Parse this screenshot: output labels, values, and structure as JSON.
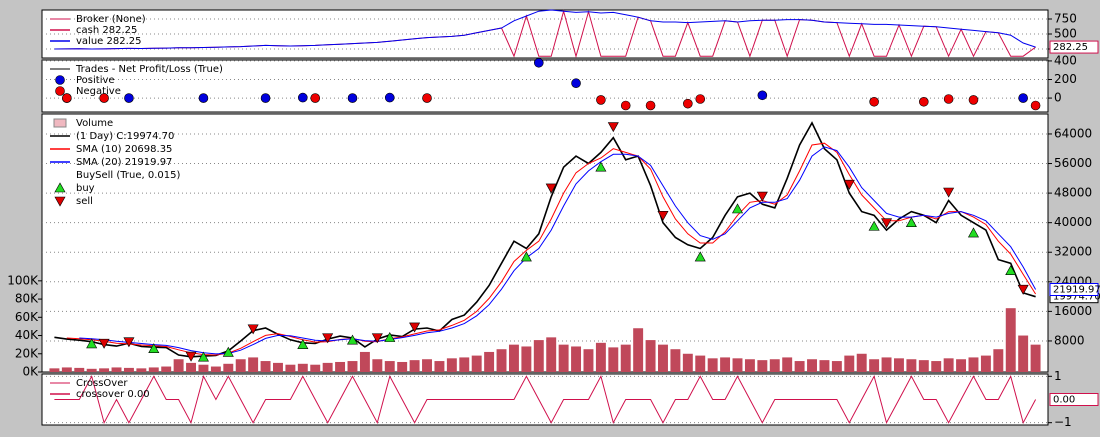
{
  "chart_data": [
    {
      "type": "line",
      "title": "Broker (None)",
      "ylim": [
        100,
        900
      ],
      "yticks": [
        250,
        500,
        750
      ],
      "xlim": [
        -1,
        80
      ],
      "grid": true,
      "x": [
        0,
        1,
        2,
        3,
        4,
        5,
        6,
        7,
        8,
        9,
        10,
        11,
        12,
        13,
        14,
        15,
        16,
        17,
        18,
        19,
        20,
        21,
        22,
        23,
        24,
        25,
        26,
        27,
        28,
        29,
        30,
        31,
        32,
        33,
        34,
        35,
        36,
        37,
        38,
        39,
        40,
        41,
        42,
        43,
        44,
        45,
        46,
        47,
        48,
        49,
        50,
        51,
        52,
        53,
        54,
        55,
        56,
        57,
        58,
        59,
        60,
        61,
        62,
        63,
        64,
        65,
        66,
        67,
        68,
        69,
        70,
        71,
        72,
        73,
        74,
        75,
        76,
        77,
        78,
        79
      ],
      "series": [
        {
          "name": "cash 282.25",
          "color": "#d0104c",
          "kind": "line",
          "last_label": "282.25",
          "values": [
            250,
            252,
            255,
            250,
            252,
            256,
            260,
            258,
            262,
            265,
            270,
            272,
            275,
            280,
            285,
            290,
            300,
            310,
            305,
            300,
            305,
            310,
            320,
            330,
            340,
            350,
            360,
            380,
            400,
            420,
            440,
            450,
            460,
            480,
            520,
            560,
            600,
            130,
            800,
            130,
            130,
            880,
            130,
            870,
            130,
            130,
            130,
            780,
            720,
            130,
            130,
            690,
            130,
            130,
            720,
            700,
            130,
            730,
            730,
            130,
            740,
            730,
            700,
            690,
            130,
            670,
            130,
            130,
            650,
            130,
            630,
            620,
            130,
            580,
            130,
            540,
            520,
            130,
            130,
            282.25
          ]
        },
        {
          "name": "value 282.25",
          "color": "#0000ee",
          "kind": "line",
          "values": [
            250,
            252,
            255,
            250,
            252,
            256,
            260,
            258,
            262,
            265,
            270,
            272,
            275,
            280,
            285,
            290,
            300,
            310,
            305,
            300,
            305,
            310,
            320,
            330,
            340,
            350,
            360,
            380,
            400,
            420,
            440,
            450,
            460,
            480,
            520,
            560,
            600,
            720,
            800,
            880,
            900,
            880,
            860,
            870,
            850,
            860,
            820,
            780,
            720,
            700,
            700,
            690,
            700,
            710,
            720,
            700,
            720,
            730,
            730,
            740,
            740,
            730,
            700,
            690,
            680,
            670,
            660,
            660,
            650,
            640,
            630,
            620,
            600,
            580,
            560,
            540,
            520,
            480,
            350,
            282.25
          ]
        }
      ]
    },
    {
      "type": "scatter",
      "title": "Trades - Net Profit/Loss (True)",
      "ylim": [
        -150,
        410
      ],
      "yticks": [
        0,
        200,
        400
      ],
      "xlim": [
        -1,
        80
      ],
      "grid": true,
      "series": [
        {
          "name": "Positive",
          "color": "#0000dd",
          "kind": "dot",
          "x": [
            1,
            6,
            12,
            17,
            20,
            24,
            27,
            39,
            42,
            57,
            78
          ],
          "values": [
            0,
            0,
            0,
            0,
            5,
            0,
            5,
            380,
            160,
            30,
            0
          ]
        },
        {
          "name": "Negative",
          "color": "#ee0000",
          "kind": "dot",
          "x": [
            1,
            4,
            21,
            30,
            44,
            46,
            48,
            51,
            52,
            66,
            70,
            72,
            74,
            79
          ],
          "values": [
            0,
            0,
            0,
            0,
            -20,
            -80,
            -80,
            -60,
            -10,
            -40,
            -40,
            -10,
            -20,
            -80
          ]
        }
      ]
    },
    {
      "type": "line",
      "ylim": [
        -400,
        69400
      ],
      "yticks": [
        64000,
        56000,
        48000,
        40000,
        32000,
        24000,
        16000,
        8000
      ],
      "y2lim": [
        0,
        283000
      ],
      "y2ticks": [
        {
          "value": 0,
          "label": "0K"
        },
        {
          "value": 20000,
          "label": "20K"
        },
        {
          "value": 40000,
          "label": "40K"
        },
        {
          "value": 60000,
          "label": "60K"
        },
        {
          "value": 80000,
          "label": "80K"
        },
        {
          "value": 100000,
          "label": "100K"
        }
      ],
      "xlim": [
        -1,
        80
      ],
      "grid": true,
      "x": [
        0,
        1,
        2,
        3,
        4,
        5,
        6,
        7,
        8,
        9,
        10,
        11,
        12,
        13,
        14,
        15,
        16,
        17,
        18,
        19,
        20,
        21,
        22,
        23,
        24,
        25,
        26,
        27,
        28,
        29,
        30,
        31,
        32,
        33,
        34,
        35,
        36,
        37,
        38,
        39,
        40,
        41,
        42,
        43,
        44,
        45,
        46,
        47,
        48,
        49,
        50,
        51,
        52,
        53,
        54,
        55,
        56,
        57,
        58,
        59,
        60,
        61,
        62,
        63,
        64,
        65,
        66,
        67,
        68,
        69,
        70,
        71,
        72,
        73,
        74,
        75,
        76,
        77,
        78,
        79
      ],
      "series": [
        {
          "name": "Volume",
          "color": "#c0485a",
          "kind": "bar",
          "axis": "y2",
          "values": [
            4000,
            5000,
            4500,
            3500,
            4000,
            5000,
            4500,
            4000,
            5000,
            6000,
            14000,
            10000,
            8000,
            6000,
            9000,
            14000,
            16000,
            12000,
            10000,
            8000,
            9000,
            8000,
            10000,
            11000,
            12000,
            22000,
            14000,
            12000,
            11000,
            13000,
            14000,
            12000,
            15000,
            16000,
            18000,
            22000,
            25000,
            30000,
            28000,
            35000,
            38000,
            30000,
            28000,
            25000,
            32000,
            27000,
            30000,
            48000,
            35000,
            30000,
            25000,
            20000,
            18000,
            15000,
            16000,
            15000,
            14000,
            13000,
            14000,
            16000,
            12000,
            14000,
            13000,
            12000,
            18000,
            20000,
            14000,
            16000,
            15000,
            14000,
            13000,
            12000,
            15000,
            14000,
            16000,
            18000,
            25000,
            70000,
            40000,
            30000
          ]
        },
        {
          "name": "(1 Day) C:19974.70",
          "color": "#000000",
          "kind": "line",
          "last_label": "19974.70",
          "values": [
            9000,
            8500,
            8200,
            7800,
            7000,
            6600,
            7400,
            6500,
            6300,
            6200,
            4200,
            3700,
            3900,
            4100,
            5300,
            8000,
            10800,
            11500,
            9800,
            8300,
            7500,
            7300,
            8500,
            9300,
            8800,
            6400,
            8500,
            9600,
            9200,
            11200,
            11500,
            10700,
            13800,
            15000,
            18500,
            23000,
            29000,
            35000,
            33000,
            37000,
            47000,
            55000,
            58000,
            56000,
            59000,
            63000,
            57000,
            58000,
            50000,
            40000,
            36000,
            34000,
            33000,
            36000,
            42000,
            47000,
            48000,
            45000,
            44000,
            52000,
            61000,
            67000,
            60000,
            57000,
            48000,
            43000,
            42000,
            38000,
            41000,
            43000,
            42000,
            40000,
            46000,
            42000,
            40000,
            38000,
            30000,
            29000,
            21000,
            19974.7
          ]
        },
        {
          "name": "SMA (10) 20698.35",
          "color": "#ff0000",
          "kind": "line",
          "values": [
            null,
            8800,
            8600,
            8300,
            7900,
            7400,
            7200,
            6900,
            6700,
            6500,
            5600,
            4800,
            4300,
            4200,
            4700,
            6000,
            7800,
            9500,
            10000,
            9200,
            8300,
            7700,
            7800,
            8400,
            8700,
            7900,
            7800,
            8600,
            9100,
            9900,
            10700,
            11000,
            12200,
            13600,
            16000,
            19500,
            24000,
            29500,
            32500,
            35000,
            41000,
            48000,
            53500,
            56000,
            57500,
            60000,
            59000,
            58000,
            54500,
            47000,
            41000,
            37000,
            34500,
            34500,
            37500,
            42000,
            45500,
            46000,
            45000,
            47500,
            54000,
            61000,
            61500,
            59000,
            53000,
            47500,
            44000,
            40500,
            40500,
            41500,
            42000,
            41000,
            43000,
            43000,
            41500,
            39500,
            35000,
            31500,
            26000,
            20698.35
          ]
        },
        {
          "name": "SMA (20) 21919.97",
          "color": "#0000ff",
          "kind": "line",
          "last_label": "21919.97",
          "values": [
            null,
            null,
            8800,
            8600,
            8300,
            7900,
            7600,
            7300,
            7000,
            6800,
            6200,
            5400,
            4800,
            4500,
            4600,
            5500,
            7000,
            8700,
            9500,
            9400,
            8800,
            8200,
            8000,
            8300,
            8600,
            8100,
            7900,
            8400,
            8900,
            9500,
            10200,
            10600,
            11500,
            12700,
            14800,
            17800,
            22000,
            27000,
            30500,
            33000,
            38000,
            44500,
            50500,
            54000,
            56500,
            58500,
            58500,
            58000,
            55500,
            50000,
            44500,
            40000,
            36500,
            35500,
            37000,
            40500,
            44000,
            45500,
            45500,
            46500,
            51500,
            58000,
            60500,
            59500,
            55000,
            49500,
            46000,
            42500,
            41500,
            41500,
            42000,
            41500,
            42500,
            43000,
            42000,
            40500,
            37000,
            33500,
            28000,
            21919.97
          ]
        },
        {
          "name": "buy",
          "group": "BuySell (True, 0.015)",
          "color": "#22dd22",
          "kind": "up",
          "x": [
            3,
            8,
            12,
            14,
            20,
            24,
            27,
            38,
            44,
            52,
            55,
            66,
            69,
            74,
            77
          ],
          "values": [
            7200,
            5900,
            3600,
            4900,
            7000,
            8200,
            8900,
            30700,
            55000,
            30700,
            43700,
            39000,
            40000,
            37200,
            27000
          ]
        },
        {
          "name": "sell",
          "color": "#dd0000",
          "kind": "down",
          "x": [
            4,
            6,
            11,
            16,
            22,
            26,
            29,
            40,
            45,
            49,
            57,
            64,
            67,
            72,
            78
          ],
          "values": [
            7400,
            7800,
            3900,
            11300,
            8900,
            8900,
            11800,
            49400,
            66000,
            42000,
            47200,
            50400,
            40000,
            48300,
            22000
          ]
        }
      ]
    },
    {
      "type": "line",
      "title": "CrossOver",
      "ylim": [
        -1.1,
        1.1
      ],
      "yticks": [
        1,
        {
          "value": -1,
          "label": "−1"
        }
      ],
      "xlim": [
        -1,
        80
      ],
      "grid": true,
      "x": [
        0,
        1,
        2,
        3,
        4,
        5,
        6,
        7,
        8,
        9,
        10,
        11,
        12,
        13,
        14,
        15,
        16,
        17,
        18,
        19,
        20,
        21,
        22,
        23,
        24,
        25,
        26,
        27,
        28,
        29,
        30,
        31,
        32,
        33,
        34,
        35,
        36,
        37,
        38,
        39,
        40,
        41,
        42,
        43,
        44,
        45,
        46,
        47,
        48,
        49,
        50,
        51,
        52,
        53,
        54,
        55,
        56,
        57,
        58,
        59,
        60,
        61,
        62,
        63,
        64,
        65,
        66,
        67,
        68,
        69,
        70,
        71,
        72,
        73,
        74,
        75,
        76,
        77,
        78,
        79
      ],
      "series": [
        {
          "name": "crossover 0.00",
          "color": "#d0104c",
          "kind": "line",
          "last_label": "0.00",
          "values": [
            0,
            0,
            0,
            1,
            -1,
            0,
            -1,
            0,
            1,
            0,
            0,
            -1,
            1,
            0,
            1,
            0,
            -1,
            0,
            0,
            0,
            1,
            0,
            -1,
            0,
            1,
            0,
            -1,
            1,
            0,
            -1,
            0,
            0,
            0,
            0,
            0,
            0,
            0,
            0,
            1,
            0,
            -1,
            0,
            0,
            0,
            1,
            -1,
            0,
            0,
            0,
            -1,
            0,
            0,
            1,
            0,
            0,
            1,
            0,
            -1,
            0,
            0,
            0,
            0,
            0,
            0,
            -1,
            0,
            1,
            -1,
            0,
            1,
            0,
            0,
            -1,
            0,
            1,
            0,
            0,
            1,
            -1,
            0
          ]
        }
      ]
    }
  ]
}
